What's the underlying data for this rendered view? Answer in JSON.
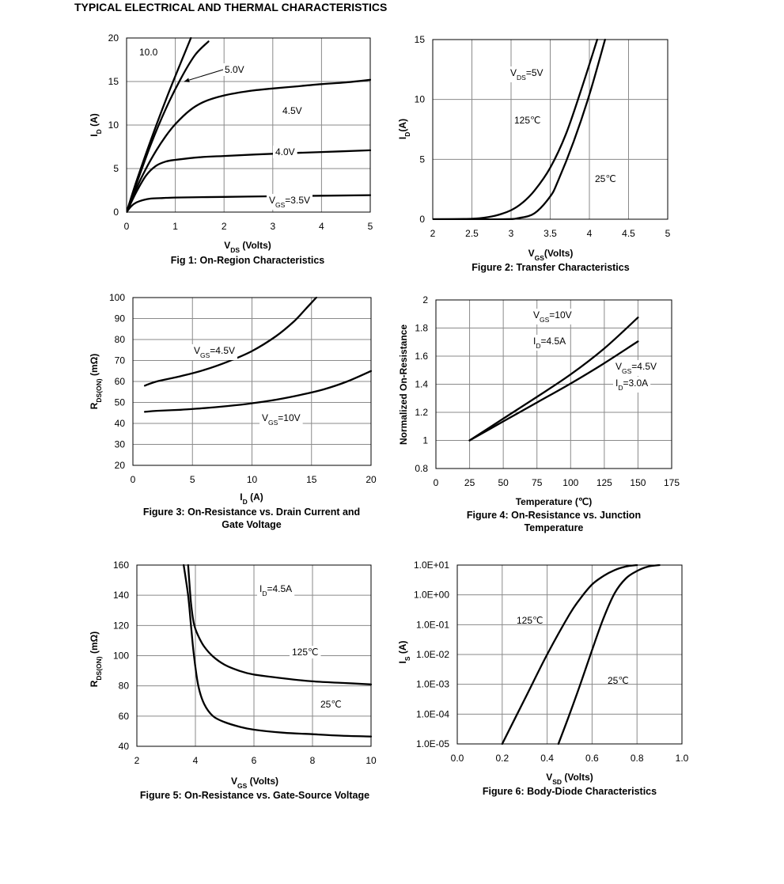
{
  "page_title": "TYPICAL ELECTRICAL AND THERMAL CHARACTERISTICS",
  "chart_data": [
    {
      "id": "fig1",
      "type": "line",
      "caption": "Fig 1: On-Region Characteristics",
      "xlabel": {
        "main": "V",
        "sub": "DS",
        "rest": " (Volts)"
      },
      "ylabel": {
        "main": "I",
        "sub": "D",
        "rest": " (A)"
      },
      "xlim": [
        0,
        5
      ],
      "ylim": [
        0,
        20
      ],
      "xticks": [
        "0",
        "1",
        "2",
        "3",
        "4",
        "5"
      ],
      "yticks": [
        "0",
        "5",
        "10",
        "15",
        "20"
      ],
      "grid": true,
      "series": [
        {
          "label": "10.0",
          "x": [
            0,
            0.2,
            0.5,
            0.8,
            1.1,
            1.32
          ],
          "y": [
            0,
            3.5,
            8.3,
            12.8,
            17,
            20
          ]
        },
        {
          "label": "5.0V",
          "x": [
            0,
            0.2,
            0.5,
            0.8,
            1.1,
            1.4,
            1.68
          ],
          "y": [
            0,
            3.2,
            7.8,
            11.8,
            15.2,
            18,
            19.6
          ]
        },
        {
          "label": "4.5V",
          "x": [
            0,
            0.2,
            0.4,
            0.6,
            0.8,
            1.0,
            1.3,
            1.6,
            2.0,
            2.5,
            3.0,
            3.5,
            4.0,
            4.5,
            5.0
          ],
          "y": [
            0,
            2.7,
            5,
            7,
            8.7,
            10.1,
            11.7,
            12.7,
            13.4,
            13.9,
            14.2,
            14.45,
            14.7,
            14.9,
            15.2
          ]
        },
        {
          "label": "4.0V",
          "x": [
            0,
            0.2,
            0.4,
            0.6,
            0.8,
            1.0,
            1.5,
            2.0,
            3.0,
            4.0,
            5.0
          ],
          "y": [
            0,
            2.3,
            4.2,
            5.3,
            5.8,
            6.0,
            6.3,
            6.45,
            6.7,
            6.9,
            7.1
          ]
        },
        {
          "label": "V|GS|=3.5V",
          "x": [
            0,
            0.1,
            0.2,
            0.35,
            0.5,
            0.75,
            1.0,
            2.0,
            3.0,
            4.0,
            5.0
          ],
          "y": [
            0,
            0.7,
            1.1,
            1.4,
            1.55,
            1.62,
            1.67,
            1.75,
            1.82,
            1.88,
            1.95
          ]
        }
      ],
      "annotations": [
        "10.0",
        "5.0V",
        "4.5V",
        "4.0V",
        "V|GS|=3.5V"
      ]
    },
    {
      "id": "fig2",
      "type": "line",
      "caption": "Figure 2: Transfer Characteristics",
      "xlabel": {
        "main": "V",
        "sub": "GS",
        "rest": "(Volts)"
      },
      "ylabel": {
        "main": "I",
        "sub": "D",
        "rest": "(A)"
      },
      "xlim": [
        2,
        5
      ],
      "ylim": [
        0,
        15
      ],
      "xticks": [
        "2",
        "2.5",
        "3",
        "3.5",
        "4",
        "4.5",
        "5"
      ],
      "yticks": [
        "0",
        "5",
        "10",
        "15"
      ],
      "grid": true,
      "series": [
        {
          "label": "125℃",
          "x": [
            2.0,
            2.4,
            2.6,
            2.8,
            3.0,
            3.15,
            3.3,
            3.5,
            3.7,
            3.9,
            4.1
          ],
          "y": [
            0,
            0.02,
            0.08,
            0.3,
            0.75,
            1.4,
            2.4,
            4.3,
            7.1,
            10.9,
            15
          ]
        },
        {
          "label": "25℃",
          "x": [
            2.0,
            2.9,
            3.1,
            3.3,
            3.5,
            3.6,
            3.8,
            4.0,
            4.2
          ],
          "y": [
            0,
            0,
            0.1,
            0.5,
            1.9,
            3.2,
            6.5,
            10.4,
            15
          ]
        }
      ],
      "annotations": [
        "V|DS|=5V",
        "125℃",
        "25℃"
      ]
    },
    {
      "id": "fig3",
      "type": "line",
      "caption": [
        "Figure 3: On-Resistance vs. Drain Current and",
        "Gate Voltage"
      ],
      "xlabel": {
        "main": "I",
        "sub": "D",
        "rest": " (A)"
      },
      "ylabel": {
        "main": "R",
        "sub": "DS(ON)",
        "rest": " (mΩ)"
      },
      "xlim": [
        0,
        20
      ],
      "ylim": [
        20,
        100
      ],
      "xticks": [
        "0",
        "5",
        "10",
        "15",
        "20"
      ],
      "yticks": [
        "20",
        "30",
        "40",
        "50",
        "60",
        "70",
        "80",
        "90",
        "100"
      ],
      "grid": true,
      "series": [
        {
          "label": "V|GS|=4.5V",
          "x": [
            1,
            2,
            4,
            6,
            8,
            10,
            12,
            13.5,
            14.5,
            15.4
          ],
          "y": [
            58,
            60,
            62.5,
            65.5,
            69.5,
            74.5,
            81.5,
            88.5,
            94.5,
            100
          ]
        },
        {
          "label": "V|GS|=10V",
          "x": [
            1,
            2,
            4,
            6,
            8,
            10,
            12,
            14,
            16,
            18,
            20
          ],
          "y": [
            45.5,
            46,
            46.5,
            47.3,
            48.3,
            49.6,
            51.3,
            53.5,
            56.2,
            60,
            65
          ]
        }
      ],
      "annotations": [
        "V|GS|=4.5V",
        "V|GS|=10V"
      ]
    },
    {
      "id": "fig4",
      "type": "line",
      "caption": [
        "Figure 4: On-Resistance vs. Junction",
        "Temperature"
      ],
      "xlabel": {
        "main": "Temperature (℃)",
        "sub": "",
        "rest": ""
      },
      "ylabel": {
        "main": "Normalized On-Resistance",
        "sub": "",
        "rest": ""
      },
      "xlim": [
        0,
        175
      ],
      "ylim": [
        0.8,
        2
      ],
      "xticks": [
        "0",
        "25",
        "50",
        "75",
        "100",
        "125",
        "150",
        "175"
      ],
      "yticks": [
        "0.8",
        "1",
        "1.2",
        "1.4",
        "1.6",
        "1.8",
        "2"
      ],
      "grid": true,
      "series": [
        {
          "label": "V|GS|=10V, I|D|=4.5A",
          "x": [
            25,
            50,
            75,
            100,
            125,
            150
          ],
          "y": [
            1.0,
            1.155,
            1.31,
            1.47,
            1.655,
            1.875
          ]
        },
        {
          "label": "V|GS|=4.5V, I|D|=3.0A",
          "x": [
            25,
            50,
            75,
            100,
            125,
            150
          ],
          "y": [
            1.0,
            1.135,
            1.27,
            1.405,
            1.55,
            1.705
          ]
        }
      ],
      "annotations": [
        "V|GS|=10V",
        "I|D|=4.5A",
        "V|GS|=4.5V",
        "I|D|=3.0A"
      ]
    },
    {
      "id": "fig5",
      "type": "line",
      "caption": "Figure 5: On-Resistance vs. Gate-Source Voltage",
      "xlabel": {
        "main": "V",
        "sub": "GS",
        "rest": " (Volts)"
      },
      "ylabel": {
        "main": "R",
        "sub": "DS(ON)",
        "rest": " (mΩ)"
      },
      "xlim": [
        2,
        10
      ],
      "ylim": [
        40,
        160
      ],
      "xticks": [
        "2",
        "4",
        "6",
        "8",
        "10"
      ],
      "yticks": [
        "40",
        "60",
        "80",
        "100",
        "120",
        "140",
        "160"
      ],
      "grid": true,
      "series": [
        {
          "label": "125℃",
          "x": [
            3.75,
            3.85,
            3.95,
            4.1,
            4.3,
            4.6,
            5.0,
            5.5,
            6.0,
            7.0,
            8.0,
            9.0,
            10.0
          ],
          "y": [
            160,
            135,
            121,
            113,
            106,
            99.5,
            94,
            90,
            87.5,
            85,
            83,
            82,
            81
          ]
        },
        {
          "label": "25℃",
          "x": [
            3.6,
            3.75,
            3.85,
            3.95,
            4.1,
            4.3,
            4.6,
            5.0,
            5.5,
            6.0,
            7.0,
            8.0,
            9.0,
            10.0
          ],
          "y": [
            160,
            140,
            120,
            100,
            80,
            68,
            60,
            56,
            53,
            51,
            49,
            48,
            47,
            46.5
          ]
        }
      ],
      "annotations": [
        "I|D|=4.5A",
        "125℃",
        "25℃"
      ]
    },
    {
      "id": "fig6",
      "type": "line",
      "caption": "Figure 6: Body-Diode Characteristics",
      "xlabel": {
        "main": "V",
        "sub": "SD",
        "rest": " (Volts)"
      },
      "ylabel": {
        "main": "I",
        "sub": "S",
        "rest": " (A)"
      },
      "yscale": "log",
      "xlim": [
        0,
        1
      ],
      "ylim": [
        -5,
        1
      ],
      "xticks": [
        "0.0",
        "0.2",
        "0.4",
        "0.6",
        "0.8",
        "1.0"
      ],
      "yticks": [
        "1.0E-05",
        "1.0E-04",
        "1.0E-03",
        "1.0E-02",
        "1.0E-01",
        "1.0E+00",
        "1.0E+01"
      ],
      "grid": true,
      "series": [
        {
          "label": "125℃",
          "x": [
            0.2,
            0.3,
            0.4,
            0.5,
            0.55,
            0.6,
            0.65,
            0.7,
            0.75,
            0.8
          ],
          "y": [
            -5,
            -3.5,
            -2,
            -0.65,
            -0.1,
            0.35,
            0.63,
            0.83,
            0.95,
            1.0
          ]
        },
        {
          "label": "25℃",
          "x": [
            0.45,
            0.5,
            0.55,
            0.6,
            0.65,
            0.7,
            0.75,
            0.8,
            0.85,
            0.9
          ],
          "y": [
            -5,
            -4,
            -2.95,
            -1.85,
            -0.8,
            0.05,
            0.55,
            0.8,
            0.95,
            1.0
          ]
        }
      ],
      "annotations": [
        "125℃",
        "25℃"
      ]
    }
  ]
}
